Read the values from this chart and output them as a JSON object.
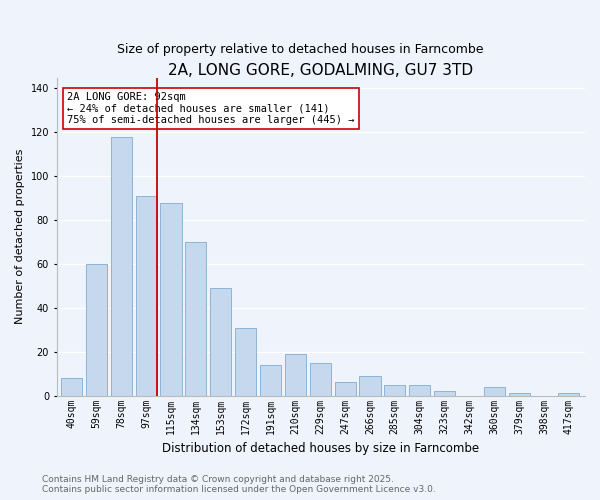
{
  "title": "2A, LONG GORE, GODALMING, GU7 3TD",
  "subtitle": "Size of property relative to detached houses in Farncombe",
  "xlabel": "Distribution of detached houses by size in Farncombe",
  "ylabel": "Number of detached properties",
  "categories": [
    "40sqm",
    "59sqm",
    "78sqm",
    "97sqm",
    "115sqm",
    "134sqm",
    "153sqm",
    "172sqm",
    "191sqm",
    "210sqm",
    "229sqm",
    "247sqm",
    "266sqm",
    "285sqm",
    "304sqm",
    "323sqm",
    "342sqm",
    "360sqm",
    "379sqm",
    "398sqm",
    "417sqm"
  ],
  "values": [
    8,
    60,
    118,
    91,
    88,
    70,
    49,
    31,
    14,
    19,
    15,
    6,
    9,
    5,
    5,
    2,
    0,
    4,
    1,
    0,
    1
  ],
  "bar_color": "#c5d8ee",
  "bar_edge_color": "#8ab4d8",
  "vline_color": "#cc0000",
  "vline_x_index": 3,
  "ylim": [
    0,
    145
  ],
  "yticks": [
    0,
    20,
    40,
    60,
    80,
    100,
    120,
    140
  ],
  "annotation_title": "2A LONG GORE: 92sqm",
  "annotation_line1": "← 24% of detached houses are smaller (141)",
  "annotation_line2": "75% of semi-detached houses are larger (445) →",
  "annotation_box_color": "#ffffff",
  "annotation_box_edge": "#cc0000",
  "bg_color": "#eef3fc",
  "grid_color": "#ffffff",
  "footer1": "Contains HM Land Registry data © Crown copyright and database right 2025.",
  "footer2": "Contains public sector information licensed under the Open Government Licence v3.0.",
  "title_fontsize": 11,
  "subtitle_fontsize": 9,
  "xlabel_fontsize": 8.5,
  "ylabel_fontsize": 8,
  "tick_fontsize": 7,
  "annotation_fontsize": 7.5,
  "footer_fontsize": 6.5
}
